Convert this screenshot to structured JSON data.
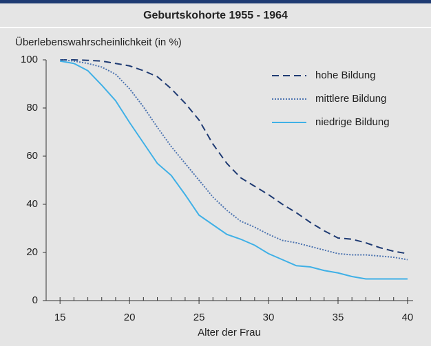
{
  "chart_data": {
    "type": "line",
    "title": "Geburtskohorte 1955 - 1964",
    "y_label": "Überlebenswahrscheinlichkeit (in %)",
    "x_label": "Alter der Frau",
    "x": [
      15,
      16,
      17,
      18,
      19,
      20,
      21,
      22,
      23,
      24,
      25,
      26,
      27,
      28,
      29,
      30,
      31,
      32,
      33,
      34,
      35,
      36,
      37,
      38,
      39,
      40
    ],
    "series": [
      {
        "name": "hohe Bildung",
        "color": "#1f3b73",
        "dash": "dashed",
        "values": [
          100,
          100,
          99.8,
          99.5,
          98.5,
          97.5,
          95.5,
          93,
          88,
          82,
          75,
          65,
          57,
          51,
          47.5,
          44,
          40,
          36.5,
          32.5,
          29,
          26,
          25.5,
          24,
          22,
          20.5,
          19.5
        ]
      },
      {
        "name": "mittlere Bildung",
        "color": "#4d74b0",
        "dash": "dotted",
        "values": [
          100,
          99.5,
          98.5,
          97,
          94,
          88,
          80.5,
          72,
          64,
          57,
          50,
          43,
          37.5,
          33,
          30.5,
          27.5,
          25,
          24,
          22.5,
          21,
          19.5,
          19,
          19,
          18.5,
          18,
          17
        ]
      },
      {
        "name": "niedrige Bildung",
        "color": "#3fb0e6",
        "dash": "solid",
        "values": [
          99.5,
          98.5,
          95.5,
          89.5,
          83,
          74,
          65.5,
          57,
          52,
          44,
          35.5,
          31.5,
          27.5,
          25.5,
          23,
          19.5,
          17,
          14.5,
          14,
          12.5,
          11.5,
          10,
          9,
          9,
          9,
          9
        ]
      }
    ],
    "xlim": [
      14,
      40.4
    ],
    "xticks": [
      15,
      20,
      25,
      30,
      35,
      40
    ],
    "ylim": [
      0,
      100
    ],
    "yticks": [
      0,
      20,
      40,
      60,
      80,
      100
    ],
    "legend": "upper right"
  }
}
